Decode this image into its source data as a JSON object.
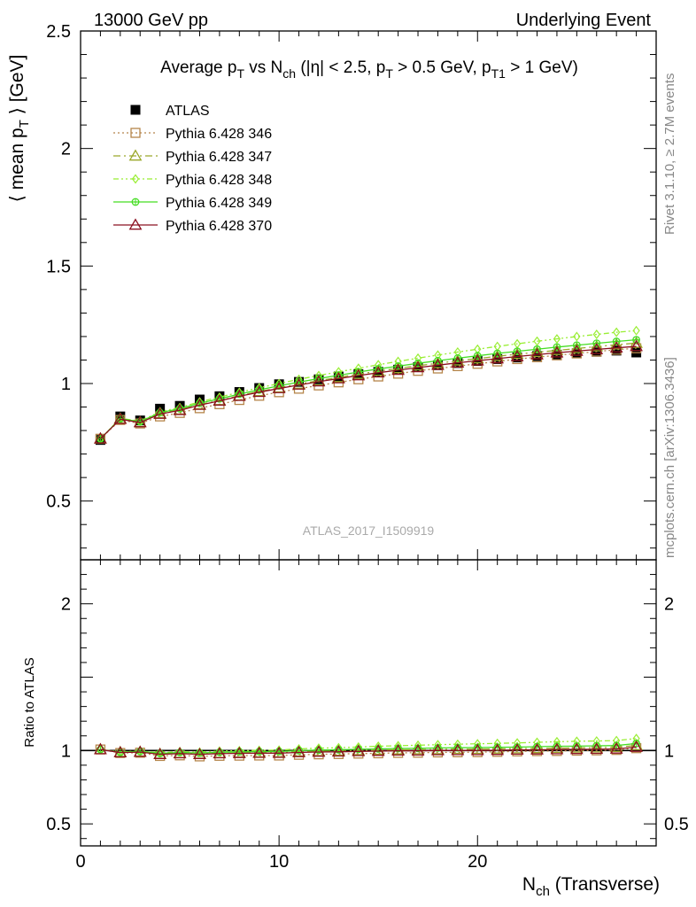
{
  "header": {
    "left": "13000 GeV pp",
    "right": "Underlying Event"
  },
  "side_labels": {
    "rivet": "Rivet 3.1.10, ≥ 2.7M events",
    "mcplots": "mcplots.cern.ch [arXiv:1306.3436]"
  },
  "watermark": "ATLAS_2017_I1509919",
  "colors": {
    "atlas": "#000000",
    "p346": "#b5854a",
    "p347": "#9aa82a",
    "p348": "#99ee33",
    "p349": "#44dd22",
    "p370": "#8b1020"
  },
  "chart_data": [
    {
      "type": "scatter",
      "title": {
        "parts": [
          "Average p",
          "T",
          " vs N",
          "ch",
          " (|η| < 2.5, p",
          "T",
          " > 0.5 GeV, p",
          "T1",
          " > 1 GeV)"
        ]
      },
      "ylabel": {
        "parts": [
          "⟨ mean p",
          "T",
          " ⟩ [GeV]"
        ]
      },
      "xlim": [
        0,
        29
      ],
      "ylim": [
        0.25,
        2.5
      ],
      "yticks": [
        0.5,
        1,
        1.5,
        2,
        2.5
      ],
      "ytick_labels": [
        "0.5",
        "1",
        "1.5",
        "2",
        "2.5"
      ],
      "legend": [
        "ATLAS",
        "Pythia 6.428 346",
        "Pythia 6.428 347",
        "Pythia 6.428 348",
        "Pythia 6.428 349",
        "Pythia 6.428 370"
      ],
      "x": [
        1,
        2,
        3,
        4,
        5,
        6,
        7,
        8,
        9,
        10,
        11,
        12,
        13,
        14,
        15,
        16,
        17,
        18,
        19,
        20,
        21,
        22,
        23,
        24,
        25,
        26,
        27,
        28
      ],
      "series": [
        {
          "name": "ATLAS",
          "values": [
            0.76,
            0.86,
            0.843,
            0.893,
            0.905,
            0.932,
            0.946,
            0.964,
            0.981,
            0.997,
            1.007,
            1.018,
            1.03,
            1.04,
            1.05,
            1.059,
            1.07,
            1.078,
            1.087,
            1.096,
            1.104,
            1.111,
            1.117,
            1.123,
            1.129,
            1.135,
            1.14,
            1.132
          ]
        },
        {
          "name": "Pythia 6.428 346",
          "values": [
            0.765,
            0.845,
            0.83,
            0.86,
            0.875,
            0.895,
            0.912,
            0.93,
            0.948,
            0.963,
            0.978,
            0.992,
            1.005,
            1.018,
            1.03,
            1.042,
            1.054,
            1.064,
            1.074,
            1.084,
            1.094,
            1.104,
            1.112,
            1.12,
            1.128,
            1.136,
            1.144,
            1.15
          ]
        },
        {
          "name": "Pythia 6.428 347",
          "values": [
            0.765,
            0.85,
            0.835,
            0.872,
            0.888,
            0.91,
            0.928,
            0.948,
            0.966,
            0.982,
            0.998,
            1.012,
            1.026,
            1.04,
            1.053,
            1.064,
            1.076,
            1.086,
            1.097,
            1.106,
            1.116,
            1.125,
            1.133,
            1.141,
            1.149,
            1.157,
            1.165,
            1.172
          ]
        },
        {
          "name": "Pythia 6.428 348",
          "values": [
            0.765,
            0.852,
            0.84,
            0.88,
            0.898,
            0.922,
            0.942,
            0.963,
            0.982,
            1.0,
            1.018,
            1.034,
            1.05,
            1.065,
            1.08,
            1.094,
            1.108,
            1.121,
            1.134,
            1.146,
            1.158,
            1.169,
            1.18,
            1.19,
            1.2,
            1.209,
            1.218,
            1.225
          ]
        },
        {
          "name": "Pythia 6.428 349",
          "values": [
            0.765,
            0.85,
            0.838,
            0.876,
            0.893,
            0.916,
            0.935,
            0.955,
            0.973,
            0.99,
            1.006,
            1.021,
            1.035,
            1.049,
            1.062,
            1.074,
            1.086,
            1.097,
            1.108,
            1.118,
            1.128,
            1.137,
            1.146,
            1.155,
            1.163,
            1.171,
            1.179,
            1.186
          ]
        },
        {
          "name": "Pythia 6.428 370",
          "values": [
            0.765,
            0.848,
            0.834,
            0.87,
            0.886,
            0.908,
            0.926,
            0.946,
            0.963,
            0.979,
            0.994,
            1.008,
            1.021,
            1.034,
            1.046,
            1.057,
            1.068,
            1.078,
            1.088,
            1.097,
            1.106,
            1.115,
            1.123,
            1.131,
            1.138,
            1.145,
            1.152,
            1.158
          ]
        }
      ]
    },
    {
      "type": "scatter",
      "ylabel": "Ratio to ATLAS",
      "xlabel": {
        "parts": [
          "N",
          "ch",
          " (Transverse)"
        ]
      },
      "xlim": [
        0,
        29
      ],
      "ylim": [
        0.35,
        2.3
      ],
      "yticks": [
        0.5,
        1,
        2
      ],
      "ytick_labels": [
        "0.5",
        "1",
        "2"
      ],
      "xticks": [
        0,
        10,
        20
      ],
      "xtick_labels": [
        "0",
        "10",
        "20"
      ],
      "reference": 1,
      "x": [
        1,
        2,
        3,
        4,
        5,
        6,
        7,
        8,
        9,
        10,
        11,
        12,
        13,
        14,
        15,
        16,
        17,
        18,
        19,
        20,
        21,
        22,
        23,
        24,
        25,
        26,
        27,
        28
      ],
      "series": [
        {
          "name": "Pythia 6.428 346",
          "values": [
            1.007,
            0.983,
            0.985,
            0.963,
            0.967,
            0.96,
            0.964,
            0.965,
            0.966,
            0.966,
            0.971,
            0.974,
            0.976,
            0.979,
            0.981,
            0.984,
            0.985,
            0.987,
            0.988,
            0.989,
            0.991,
            0.994,
            0.996,
            0.997,
            0.999,
            1.001,
            1.004,
            1.016
          ]
        },
        {
          "name": "Pythia 6.428 347",
          "values": [
            1.007,
            0.988,
            0.99,
            0.976,
            0.981,
            0.976,
            0.981,
            0.983,
            0.985,
            0.985,
            0.991,
            0.994,
            0.996,
            1.0,
            1.003,
            1.005,
            1.006,
            1.007,
            1.009,
            1.009,
            1.011,
            1.013,
            1.014,
            1.016,
            1.018,
            1.019,
            1.022,
            1.035
          ]
        },
        {
          "name": "Pythia 6.428 348",
          "values": [
            1.007,
            0.991,
            0.996,
            0.985,
            0.992,
            0.989,
            0.996,
            0.999,
            1.001,
            1.003,
            1.011,
            1.016,
            1.019,
            1.024,
            1.029,
            1.033,
            1.036,
            1.04,
            1.043,
            1.046,
            1.049,
            1.052,
            1.056,
            1.06,
            1.063,
            1.065,
            1.068,
            1.082
          ]
        },
        {
          "name": "Pythia 6.428 349",
          "values": [
            1.007,
            0.988,
            0.994,
            0.981,
            0.987,
            0.983,
            0.988,
            0.991,
            0.992,
            0.993,
            0.999,
            1.003,
            1.005,
            1.009,
            1.011,
            1.014,
            1.015,
            1.018,
            1.019,
            1.02,
            1.022,
            1.023,
            1.026,
            1.029,
            1.03,
            1.032,
            1.034,
            1.048
          ]
        },
        {
          "name": "Pythia 6.428 370",
          "values": [
            1.007,
            0.986,
            0.989,
            0.974,
            0.979,
            0.974,
            0.979,
            0.981,
            0.982,
            0.982,
            0.987,
            0.99,
            0.991,
            0.994,
            0.996,
            0.998,
            0.998,
            1.0,
            1.001,
            1.001,
            1.002,
            1.004,
            1.005,
            1.007,
            1.008,
            1.009,
            1.011,
            1.023
          ]
        }
      ]
    }
  ]
}
